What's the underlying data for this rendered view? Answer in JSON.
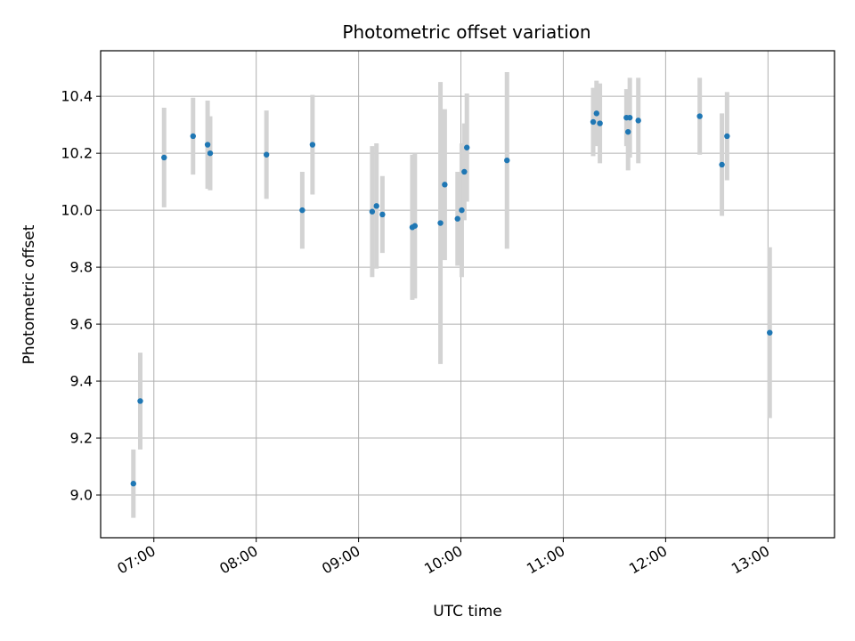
{
  "chart_data": {
    "type": "scatter",
    "title": "Photometric offset variation",
    "xlabel": "UTC time",
    "ylabel": "Photometric offset",
    "grid": true,
    "xlim_hours": [
      6.48,
      13.65
    ],
    "ylim": [
      8.85,
      10.56
    ],
    "x_ticks": [
      {
        "hour": 7,
        "label": "07:00"
      },
      {
        "hour": 8,
        "label": "08:00"
      },
      {
        "hour": 9,
        "label": "09:00"
      },
      {
        "hour": 10,
        "label": "10:00"
      },
      {
        "hour": 11,
        "label": "11:00"
      },
      {
        "hour": 12,
        "label": "12:00"
      },
      {
        "hour": 13,
        "label": "13:00"
      }
    ],
    "y_ticks": [
      {
        "value": 9.0,
        "label": "9.0"
      },
      {
        "value": 9.2,
        "label": "9.2"
      },
      {
        "value": 9.4,
        "label": "9.4"
      },
      {
        "value": 9.6,
        "label": "9.6"
      },
      {
        "value": 9.8,
        "label": "9.8"
      },
      {
        "value": 10.0,
        "label": "10.0"
      },
      {
        "value": 10.2,
        "label": "10.2"
      },
      {
        "value": 10.4,
        "label": "10.4"
      }
    ],
    "marker_color": "#1f77b4",
    "errorbar_color": "#d3d3d3",
    "points": [
      {
        "time": "06:48",
        "hour": 6.8,
        "value": 9.04,
        "err": 0.12
      },
      {
        "time": "06:52",
        "hour": 6.867,
        "value": 9.33,
        "err": 0.17
      },
      {
        "time": "07:06",
        "hour": 7.1,
        "value": 10.185,
        "err": 0.175
      },
      {
        "time": "07:23",
        "hour": 7.383,
        "value": 10.26,
        "err": 0.135
      },
      {
        "time": "07:32",
        "hour": 7.525,
        "value": 10.23,
        "err": 0.155
      },
      {
        "time": "07:33",
        "hour": 7.55,
        "value": 10.2,
        "err": 0.13
      },
      {
        "time": "08:06",
        "hour": 8.1,
        "value": 10.195,
        "err": 0.155
      },
      {
        "time": "08:27",
        "hour": 8.45,
        "value": 10.0,
        "err": 0.135
      },
      {
        "time": "08:33",
        "hour": 8.55,
        "value": 10.23,
        "err": 0.175
      },
      {
        "time": "09:08",
        "hour": 9.133,
        "value": 9.995,
        "err": 0.23
      },
      {
        "time": "09:10",
        "hour": 9.175,
        "value": 10.015,
        "err": 0.22
      },
      {
        "time": "09:14",
        "hour": 9.233,
        "value": 9.985,
        "err": 0.135
      },
      {
        "time": "09:31",
        "hour": 9.525,
        "value": 9.94,
        "err": 0.255
      },
      {
        "time": "09:33",
        "hour": 9.55,
        "value": 9.945,
        "err": 0.255
      },
      {
        "time": "09:48",
        "hour": 9.8,
        "value": 9.955,
        "err": 0.495
      },
      {
        "time": "09:50",
        "hour": 9.842,
        "value": 10.09,
        "err": 0.265
      },
      {
        "time": "09:58",
        "hour": 9.967,
        "value": 9.97,
        "err": 0.165
      },
      {
        "time": "10:00",
        "hour": 10.008,
        "value": 10.0,
        "err": 0.235
      },
      {
        "time": "10:02",
        "hour": 10.033,
        "value": 10.135,
        "err": 0.17
      },
      {
        "time": "10:04",
        "hour": 10.058,
        "value": 10.22,
        "err": 0.19
      },
      {
        "time": "10:27",
        "hour": 10.45,
        "value": 10.175,
        "err": 0.31
      },
      {
        "time": "11:18",
        "hour": 11.292,
        "value": 10.31,
        "err": 0.12
      },
      {
        "time": "11:20",
        "hour": 11.325,
        "value": 10.34,
        "err": 0.115
      },
      {
        "time": "11:22",
        "hour": 11.358,
        "value": 10.305,
        "err": 0.14
      },
      {
        "time": "11:37",
        "hour": 11.617,
        "value": 10.325,
        "err": 0.1
      },
      {
        "time": "11:38",
        "hour": 11.633,
        "value": 10.275,
        "err": 0.135
      },
      {
        "time": "11:39",
        "hour": 11.65,
        "value": 10.325,
        "err": 0.14
      },
      {
        "time": "11:44",
        "hour": 11.733,
        "value": 10.315,
        "err": 0.15
      },
      {
        "time": "12:20",
        "hour": 12.333,
        "value": 10.33,
        "err": 0.135
      },
      {
        "time": "12:33",
        "hour": 12.55,
        "value": 10.16,
        "err": 0.18
      },
      {
        "time": "12:36",
        "hour": 12.6,
        "value": 10.26,
        "err": 0.155
      },
      {
        "time": "13:01",
        "hour": 13.017,
        "value": 9.57,
        "err": 0.3
      }
    ]
  }
}
